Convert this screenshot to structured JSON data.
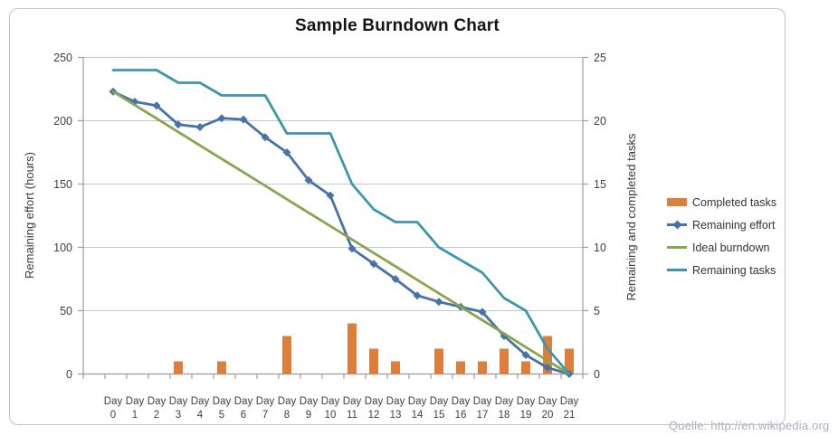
{
  "title": "Sample Burndown Chart",
  "watermark": "Quelle: http://en.wikipedia.org",
  "colors": {
    "bar_orange": "#DD7E3B",
    "effort_blue": "#4572A7",
    "ideal_green": "#89A54E",
    "tasks_teal": "#3D96AE",
    "gridline": "#c6c6c6",
    "axis": "#9c9c9c",
    "tick_label": "#3f3f3f",
    "watermark": "#abacbe"
  },
  "chart_data": {
    "type": "combo",
    "title": "Sample Burndown Chart",
    "categories": [
      "Day 0",
      "Day 1",
      "Day 2",
      "Day 3",
      "Day 4",
      "Day 5",
      "Day 6",
      "Day 7",
      "Day 8",
      "Day 9",
      "Day 10",
      "Day 11",
      "Day 12",
      "Day 13",
      "Day 14",
      "Day 15",
      "Day 16",
      "Day 17",
      "Day 18",
      "Day 19",
      "Day 20",
      "Day 21"
    ],
    "axes": {
      "left": {
        "label": "Remaining effort (hours)",
        "min": 0,
        "max": 250,
        "ticks": [
          0,
          50,
          100,
          150,
          200,
          250
        ]
      },
      "right": {
        "label": "Remaining and  completed tasks",
        "min": 0,
        "max": 25,
        "ticks": [
          0,
          5,
          10,
          15,
          20,
          25
        ]
      }
    },
    "grid": true,
    "legend_position": "right",
    "series": [
      {
        "name": "Completed tasks",
        "type": "bar",
        "axis": "right",
        "color": "#DD7E3B",
        "values": [
          0,
          0,
          0,
          1,
          0,
          1,
          0,
          0,
          3,
          0,
          0,
          4,
          2,
          1,
          0,
          2,
          1,
          1,
          2,
          1,
          3,
          2
        ]
      },
      {
        "name": "Remaining effort",
        "type": "line",
        "marker": "diamond",
        "axis": "left",
        "color": "#4572A7",
        "values": [
          223,
          215,
          212,
          197,
          195,
          202,
          201,
          187,
          175,
          153,
          141,
          99,
          87,
          75,
          62,
          57,
          53,
          49,
          30,
          15,
          5,
          0
        ]
      },
      {
        "name": "Ideal burndown",
        "type": "line",
        "axis": "left",
        "color": "#89A54E",
        "values": [
          223,
          212.4,
          201.8,
          191.1,
          180.5,
          169.9,
          159.3,
          148.7,
          138,
          127.4,
          116.8,
          106.2,
          95.6,
          85,
          74.3,
          63.7,
          53.1,
          42.5,
          31.9,
          21.2,
          10.6,
          0
        ]
      },
      {
        "name": "Remaining tasks",
        "type": "line",
        "axis": "right",
        "color": "#3D96AE",
        "values": [
          24,
          24,
          24,
          23,
          23,
          22,
          22,
          22,
          19,
          19,
          19,
          15,
          13,
          12,
          12,
          10,
          9,
          8,
          6,
          5,
          2,
          0
        ]
      }
    ]
  }
}
